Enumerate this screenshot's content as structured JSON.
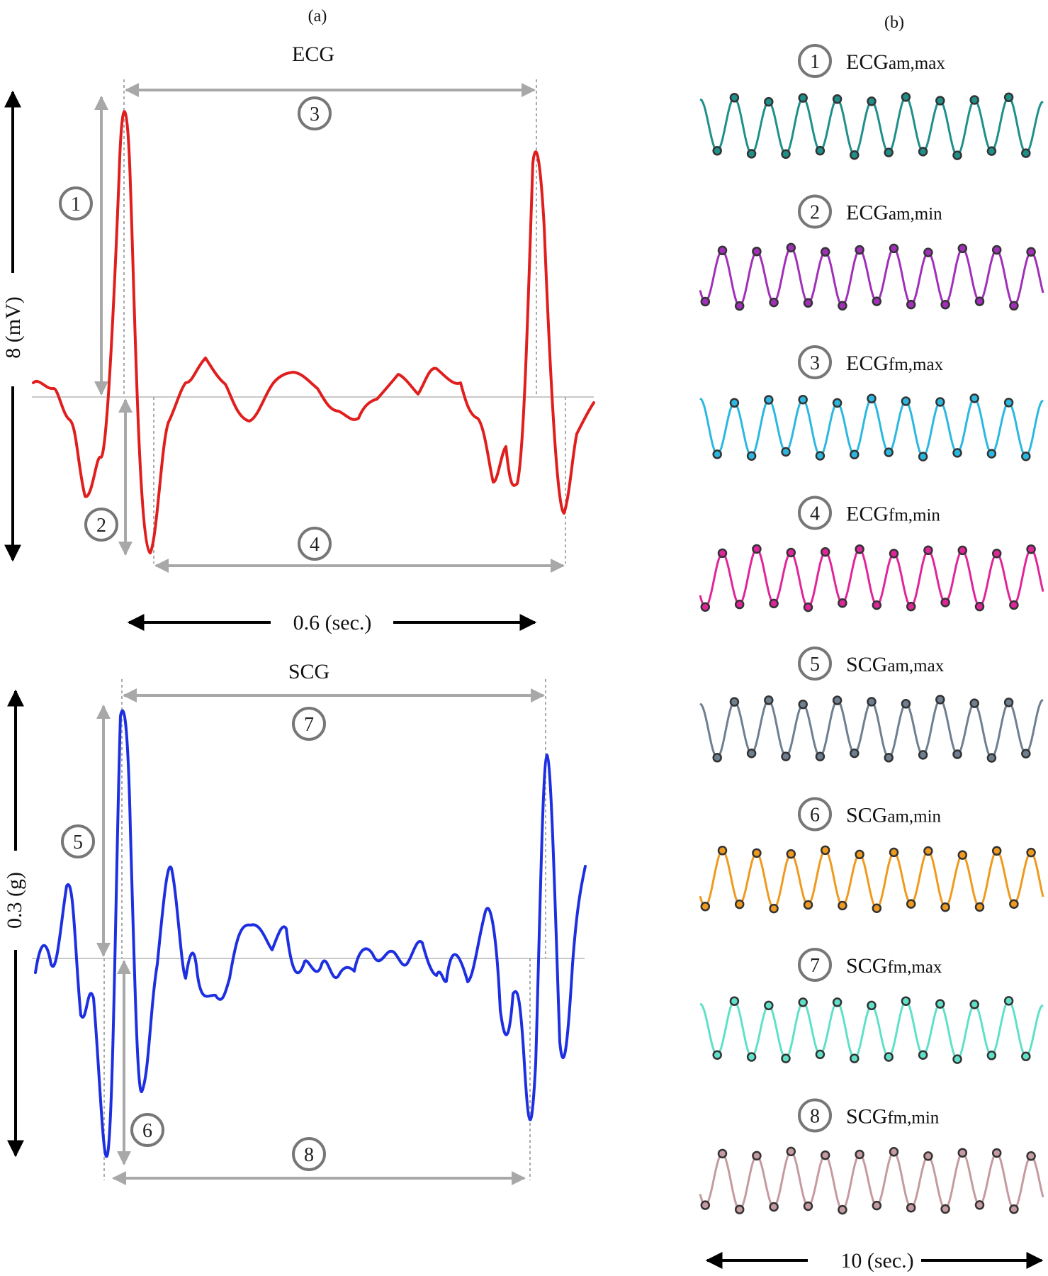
{
  "panel_a": {
    "label": "(a)",
    "ecg": {
      "title": "ECG",
      "amplitude_scale": "8 (mV)",
      "time_scale": "0.6 (sec.)",
      "color": "#e01e1e",
      "markers": [
        "1",
        "2",
        "3",
        "4"
      ]
    },
    "scg": {
      "title": "SCG",
      "amplitude_scale": "0.3 (g)",
      "color": "#1d2fe0",
      "markers": [
        "5",
        "6",
        "7",
        "8"
      ]
    }
  },
  "panel_b": {
    "label": "(b)",
    "time_scale": "10 (sec.)",
    "features": [
      {
        "number": "1",
        "main": "ECG",
        "sub": "am,max",
        "color": "#1f8f8a"
      },
      {
        "number": "2",
        "main": "ECG",
        "sub": "am,min",
        "color": "#a030b8"
      },
      {
        "number": "3",
        "main": "ECG",
        "sub": "fm,max",
        "color": "#2bb8e0"
      },
      {
        "number": "4",
        "main": "ECG",
        "sub": "fm,min",
        "color": "#e0259a"
      },
      {
        "number": "5",
        "main": "SCG",
        "sub": "am,max",
        "color": "#6e7f90"
      },
      {
        "number": "6",
        "main": "SCG",
        "sub": "am,min",
        "color": "#ef9a1e"
      },
      {
        "number": "7",
        "main": "SCG",
        "sub": "fm,max",
        "color": "#5fe0c8"
      },
      {
        "number": "8",
        "main": "SCG",
        "sub": "fm,min",
        "color": "#c59aa0"
      }
    ]
  },
  "colors": {
    "guide": "#a8a8a8",
    "baseline": "#c8c8c8",
    "arrow": "#000000",
    "marker_ring": "#777777"
  }
}
